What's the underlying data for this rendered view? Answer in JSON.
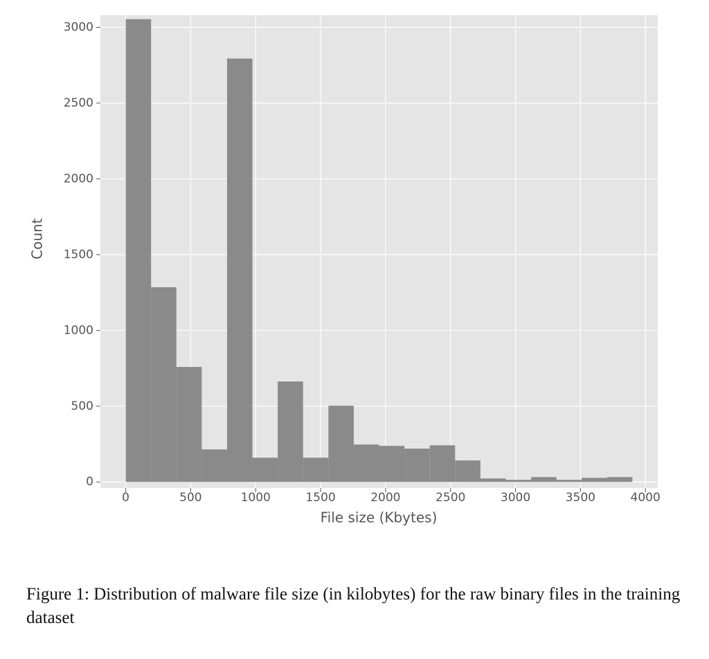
{
  "chart_data": {
    "type": "histogram",
    "x_label": "File size (Kbytes)",
    "y_label": "Count",
    "bins": [
      0,
      195,
      390,
      585,
      780,
      975,
      1170,
      1365,
      1560,
      1755,
      1950,
      2145,
      2340,
      2535,
      2730,
      2925,
      3120,
      3315,
      3510,
      3705,
      3900
    ],
    "values": [
      3054,
      1285,
      759,
      215,
      2794,
      160,
      663,
      160,
      503,
      247,
      238,
      220,
      242,
      142,
      23,
      14,
      32,
      14,
      27,
      32
    ],
    "color": "#8a8a8a",
    "xlim": [
      -195,
      4095
    ],
    "ylim": [
      -40,
      3080
    ],
    "xticks": [
      0,
      500,
      1000,
      1500,
      2000,
      2500,
      3000,
      3500,
      4000
    ],
    "yticks": [
      0,
      500,
      1000,
      1500,
      2000,
      2500,
      3000
    ],
    "grid": true
  },
  "caption": "Figure 1: Distribution of malware file size (in kilobytes) for the raw binary files in the training dataset"
}
